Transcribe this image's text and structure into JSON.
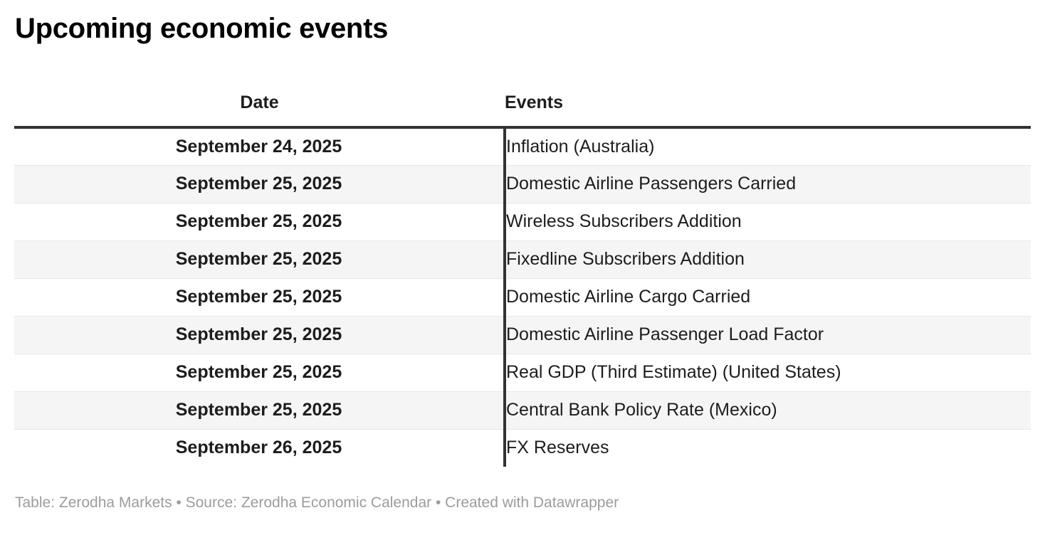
{
  "chart_data": {
    "type": "table",
    "title": "Upcoming economic events",
    "columns": [
      "Date",
      "Events"
    ],
    "rows": [
      [
        "September 24, 2025",
        "Inflation (Australia)"
      ],
      [
        "September 25, 2025",
        "Domestic Airline Passengers Carried"
      ],
      [
        "September 25, 2025",
        "Wireless Subscribers Addition"
      ],
      [
        "September 25, 2025",
        "Fixedline Subscribers Addition"
      ],
      [
        "September 25, 2025",
        "Domestic Airline Cargo Carried"
      ],
      [
        "September 25, 2025",
        "Domestic Airline Passenger Load Factor"
      ],
      [
        "September 25, 2025",
        "Real GDP (Third Estimate) (United States)"
      ],
      [
        "September 25, 2025",
        "Central Bank Policy Rate (Mexico)"
      ],
      [
        "September 26, 2025",
        "FX Reserves"
      ]
    ],
    "layout_hints": {
      "date_column_align": "center",
      "events_column_align": "left",
      "alternating_row_shading": true,
      "grid": "horizontal-separators-with-single-column-divider"
    }
  },
  "footer": {
    "text": "Table: Zerodha Markets • Source: Zerodha Economic Calendar • Created with Datawrapper"
  },
  "colors": {
    "background": "#ffffff",
    "title_text": "#000000",
    "body_text": "#1d1d1d",
    "header_rule": "#333333",
    "column_divider": "#333333",
    "row_alternate_bg": "#f5f5f5",
    "row_separator": "#e7e7e7",
    "footer_text": "#9c9c9c"
  }
}
